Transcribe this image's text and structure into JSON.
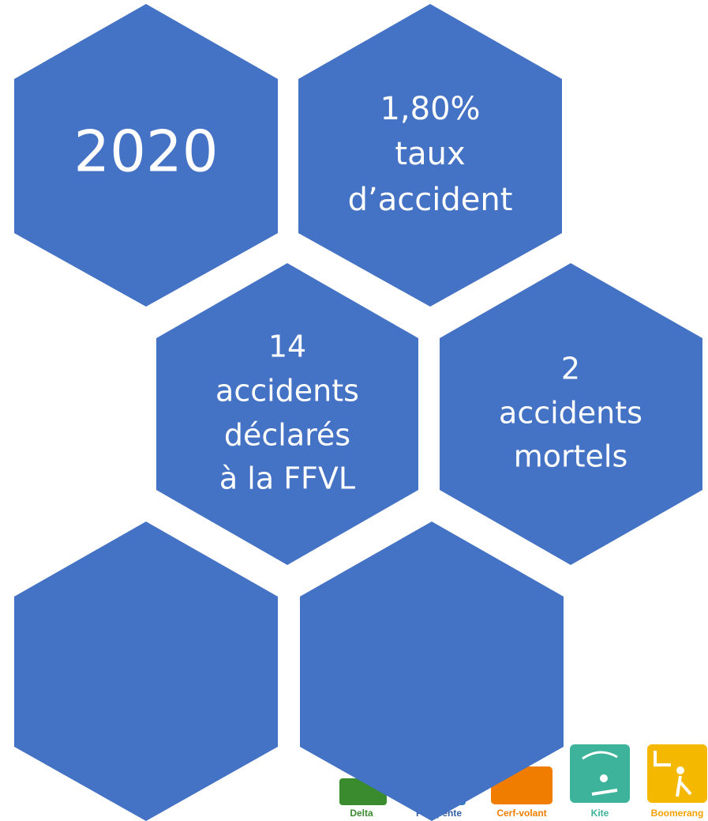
{
  "hexagons": [
    {
      "lines": [
        "2020"
      ]
    },
    {
      "lines": [
        "1,80%",
        "taux",
        "d’accident"
      ]
    },
    {
      "lines": [
        "14",
        "accidents",
        "déclarés",
        "à la FFVL"
      ]
    },
    {
      "lines": [
        "2",
        "accidents",
        "mortels"
      ]
    }
  ],
  "logos": [
    {
      "label": "Delta"
    },
    {
      "label": "Parapente"
    },
    {
      "label": "Cerf-volant"
    },
    {
      "label": "Kite"
    },
    {
      "label": "Boomerang"
    }
  ]
}
